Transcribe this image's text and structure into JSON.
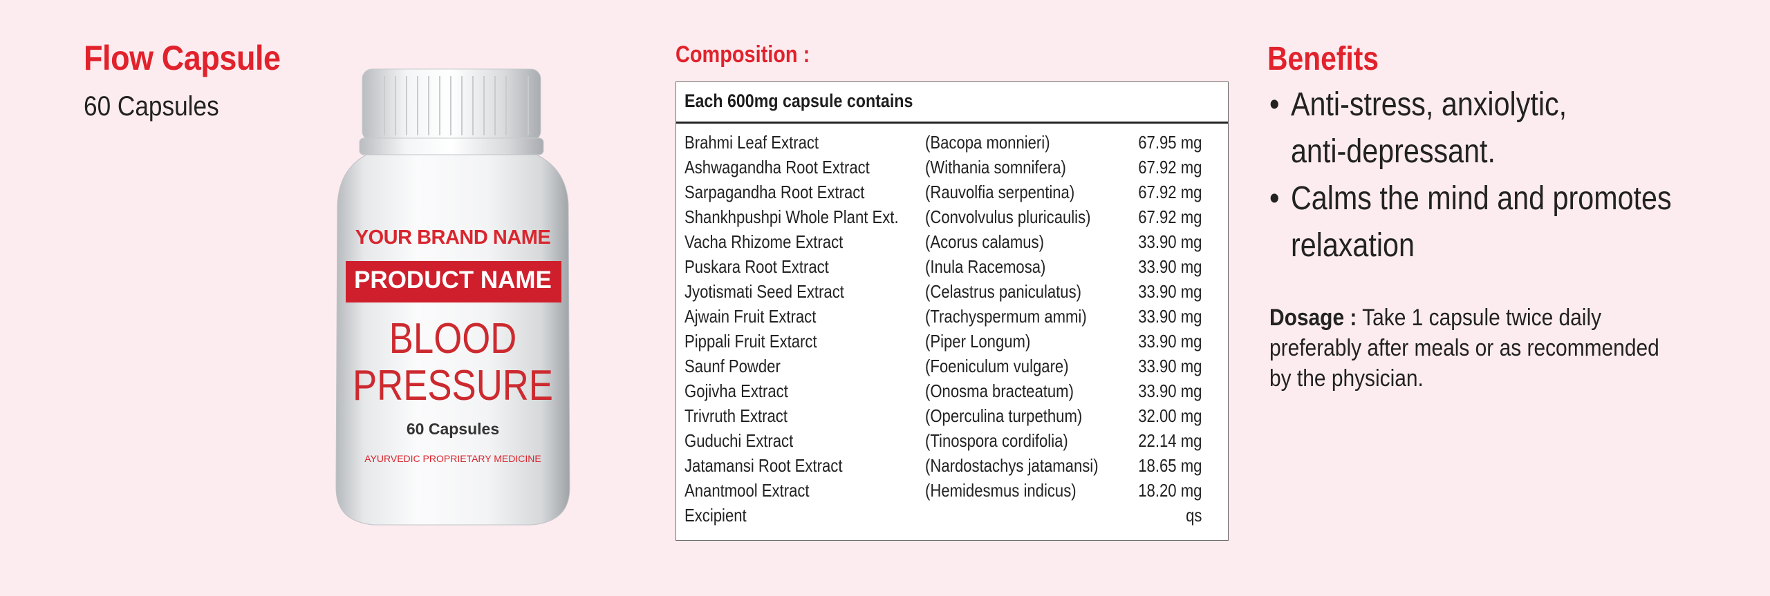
{
  "product": {
    "title": "Flow Capsule",
    "count": "60 Capsules"
  },
  "bottle": {
    "brand": "YOUR BRAND NAME",
    "product_name": "PRODUCT NAME",
    "line1": "BLOOD",
    "line2": "PRESSURE",
    "capsules": "60 Capsules",
    "tagline": "AYURVEDIC PROPRIETARY MEDICINE"
  },
  "composition": {
    "heading": "Composition :",
    "table_header": "Each 600mg capsule contains",
    "rows": [
      {
        "name": "Brahmi Leaf Extract",
        "botanical": "(Bacopa monnieri)",
        "amount": "67.95 mg"
      },
      {
        "name": "Ashwagandha Root Extract",
        "botanical": "(Withania somnifera)",
        "amount": "67.92 mg"
      },
      {
        "name": "Sarpagandha Root Extract",
        "botanical": "(Rauvolfia serpentina)",
        "amount": "67.92 mg"
      },
      {
        "name": "Shankhpushpi Whole Plant Ext.",
        "botanical": "(Convolvulus pluricaulis)",
        "amount": "67.92 mg"
      },
      {
        "name": "Vacha Rhizome Extract",
        "botanical": "(Acorus calamus)",
        "amount": "33.90 mg"
      },
      {
        "name": "Puskara Root Extract",
        "botanical": "(Inula Racemosa)",
        "amount": "33.90 mg"
      },
      {
        "name": "Jyotismati Seed Extract",
        "botanical": "(Celastrus paniculatus)",
        "amount": "33.90 mg"
      },
      {
        "name": "Ajwain Fruit Extract",
        "botanical": "(Trachyspermum ammi)",
        "amount": "33.90 mg"
      },
      {
        "name": "Pippali Fruit Extarct",
        "botanical": "(Piper Longum)",
        "amount": "33.90 mg"
      },
      {
        "name": "Saunf Powder",
        "botanical": "(Foeniculum vulgare)",
        "amount": "33.90 mg"
      },
      {
        "name": "Gojivha Extract",
        "botanical": "(Onosma bracteatum)",
        "amount": "33.90 mg"
      },
      {
        "name": "Trivruth Extract",
        "botanical": "(Operculina turpethum)",
        "amount": "32.00 mg"
      },
      {
        "name": "Guduchi Extract",
        "botanical": "(Tinospora cordifolia)",
        "amount": "22.14 mg"
      },
      {
        "name": "Jatamansi Root Extract",
        "botanical": "(Nardostachys jatamansi)",
        "amount": "18.65 mg"
      },
      {
        "name": "Anantmool Extract",
        "botanical": "(Hemidesmus indicus)",
        "amount": "18.20 mg"
      },
      {
        "name": "Excipient",
        "botanical": "",
        "amount": "qs"
      }
    ]
  },
  "benefits": {
    "heading": "Benefits",
    "items": [
      {
        "line1": "Anti-stress, anxiolytic,",
        "line2": "anti-depressant."
      },
      {
        "line1": "Calms the mind and promotes",
        "line2": "relaxation"
      }
    ]
  },
  "dosage": {
    "label": "Dosage :",
    "line1": "Take 1 capsule twice daily",
    "line2": "preferably after meals  or as recommended",
    "line3": "by the physician."
  },
  "colors": {
    "accent": "#e1222c",
    "background": "#fdecef"
  }
}
